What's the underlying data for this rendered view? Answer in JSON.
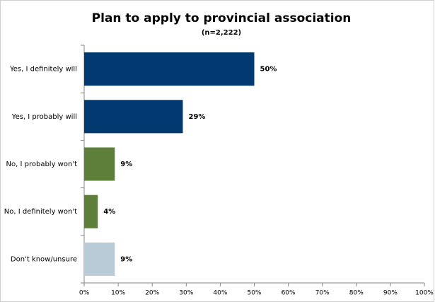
{
  "chart_data": {
    "type": "bar",
    "orientation": "horizontal",
    "title": "Plan to apply to provincial association",
    "subtitle": "(n=2,222)",
    "categories": [
      "Yes, I definitely will",
      "Yes, I probably will",
      "No, I probably won't",
      "No, I definitely won't",
      "Don't know/unsure"
    ],
    "values": [
      50,
      29,
      9,
      4,
      9
    ],
    "value_labels": [
      "50%",
      "29%",
      "9%",
      "4%",
      "9%"
    ],
    "colors": [
      "#003a70",
      "#003a70",
      "#5d7f3a",
      "#5d7f3a",
      "#b8cbd6"
    ],
    "xlim": [
      0,
      100
    ],
    "xticks": [
      {
        "value": 0,
        "label": "0%"
      },
      {
        "value": 10,
        "label": "10%"
      },
      {
        "value": 20,
        "label": "20%"
      },
      {
        "value": 30,
        "label": "30%"
      },
      {
        "value": 40,
        "label": "40%"
      },
      {
        "value": 50,
        "label": "50%"
      },
      {
        "value": 60,
        "label": "60%"
      },
      {
        "value": 70,
        "label": "70%"
      },
      {
        "value": 80,
        "label": "80%"
      },
      {
        "value": 90,
        "label": "90%"
      },
      {
        "value": 100,
        "label": "100%"
      }
    ],
    "grid": false
  }
}
